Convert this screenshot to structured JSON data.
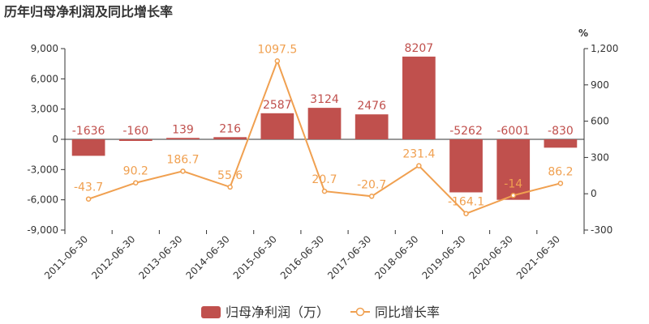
{
  "chart_data": {
    "type": "bar",
    "title": "历年归母净利润及同比增长率",
    "categories": [
      "2011-06-30",
      "2012-06-30",
      "2013-06-30",
      "2014-06-30",
      "2015-06-30",
      "2016-06-30",
      "2017-06-30",
      "2018-06-30",
      "2019-06-30",
      "2020-06-30",
      "2021-06-30"
    ],
    "series": [
      {
        "name": "归母净利润（万）",
        "type": "bar",
        "axis": "left",
        "color": "#c0504d",
        "values": [
          -1636,
          -160,
          139,
          216,
          2587,
          3124,
          2476,
          8207,
          -5262,
          -6001,
          -830
        ]
      },
      {
        "name": "同比增长率",
        "type": "line",
        "axis": "right",
        "color": "#f0a050",
        "values": [
          -43.7,
          90.2,
          186.7,
          55.6,
          1097.5,
          20.7,
          -20.7,
          231.4,
          -164.1,
          -14,
          86.2
        ]
      }
    ],
    "y_left": {
      "min": -9000,
      "max": 9000,
      "ticks": [
        -9000,
        -6000,
        -3000,
        0,
        3000,
        6000,
        9000
      ],
      "tick_labels": [
        "-9,000",
        "-6,000",
        "-3,000",
        "0",
        "3,000",
        "6,000",
        "9,000"
      ]
    },
    "y_right": {
      "min": -300,
      "max": 1200,
      "ticks": [
        -300,
        0,
        300,
        600,
        900,
        1200
      ],
      "tick_labels": [
        "-300",
        "0",
        "300",
        "600",
        "900",
        "1,200"
      ],
      "unit": "%"
    },
    "legend_position": "bottom",
    "grid": false
  }
}
